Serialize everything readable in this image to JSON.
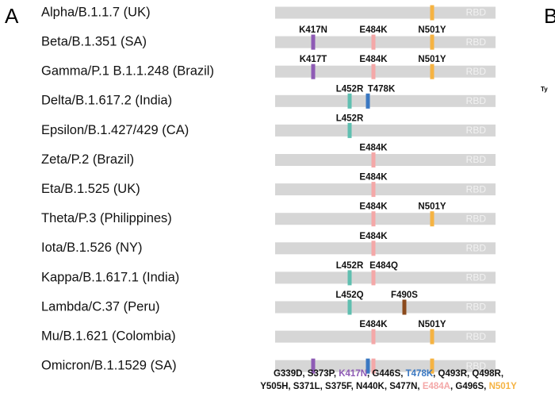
{
  "panel_label": "A",
  "next_panel_label": "B",
  "cut_text": "Ty",
  "bar_label": "RBD",
  "variants": [
    {
      "name": "Alpha/B.1.1.7 (UK)",
      "mutations": []
    },
    {
      "name": "Beta/B.1.351 (SA)",
      "mutations": [
        "K417N",
        "E484K",
        "N501Y"
      ]
    },
    {
      "name": "Gamma/P.1 B.1.1.248 (Brazil)",
      "mutations": [
        "K417T",
        "E484K",
        "N501Y"
      ]
    },
    {
      "name": "Delta/B.1.617.2 (India)",
      "mutations": [
        "L452R",
        "T478K"
      ]
    },
    {
      "name": "Epsilon/B.1.427/429 (CA)",
      "mutations": [
        "L452R"
      ]
    },
    {
      "name": "Zeta/P.2 (Brazil)",
      "mutations": [
        "E484K"
      ]
    },
    {
      "name": "Eta/B.1.525 (UK)",
      "mutations": [
        "E484K"
      ]
    },
    {
      "name": "Theta/P.3 (Philippines)",
      "mutations": [
        "E484K",
        "N501Y"
      ]
    },
    {
      "name": "Iota/B.1.526 (NY)",
      "mutations": [
        "E484K"
      ]
    },
    {
      "name": "Kappa/B.1.617.1 (India)",
      "mutations": [
        "L452R",
        "E484Q"
      ]
    },
    {
      "name": "Lambda/C.37 (Peru)",
      "mutations": [
        "L452Q",
        "F490S"
      ]
    },
    {
      "name": "Mu/B.1.621 (Colombia)",
      "mutations": [
        "E484K",
        "N501Y"
      ]
    },
    {
      "name": "Omicron/B.1.1529 (SA)",
      "mutations": []
    }
  ],
  "omicron_mutations": [
    [
      "G339D, S373P, ",
      "K417N",
      ", G446S, ",
      "T478K",
      ", Q493R, Q498R,"
    ],
    [
      "Y505H, S371L, S375F, N440K, S477N, ",
      "E484A",
      ", G496S, ",
      "N501Y"
    ]
  ]
}
